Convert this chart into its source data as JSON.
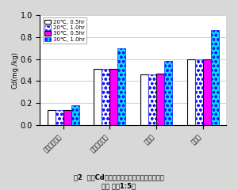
{
  "categories": [
    "選抟火山性土",
    "細粒火山性土",
    "沖積土",
    "洗積土"
  ],
  "series_labels": [
    "20℃, 0.5hr",
    "20℃, 1.0hr",
    "30℃, 0.5hr",
    "30℃, 1.0hr"
  ],
  "values": [
    [
      0.14,
      0.51,
      0.46,
      0.6
    ],
    [
      0.14,
      0.51,
      0.46,
      0.6
    ],
    [
      0.14,
      0.51,
      0.47,
      0.6
    ],
    [
      0.18,
      0.7,
      0.58,
      0.86
    ]
  ],
  "ylabel": "Cd(mg./kg)",
  "ylim": [
    0.0,
    1.0
  ],
  "yticks": [
    0.0,
    0.2,
    0.4,
    0.6,
    0.8,
    1.0
  ],
  "title1": "図2  抜出Cd量に及ぼす抜出温度・時間の影響",
  "title2": "（土 液比1:5）",
  "background_color": "#d8d8d8",
  "plot_bg_color": "#ffffff"
}
